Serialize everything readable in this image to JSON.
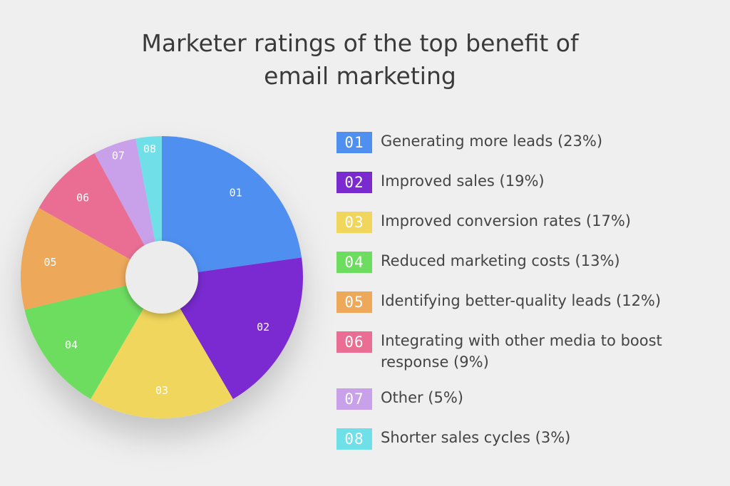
{
  "chart_data": {
    "type": "pie",
    "title_lines": [
      "Marketer ratings of the top benefit of",
      "email marketing"
    ],
    "slices": [
      {
        "num": "01",
        "label": "Generating more leads (23%)",
        "value": 23,
        "color": "#4f8ff0"
      },
      {
        "num": "02",
        "label": "Improved sales (19%)",
        "value": 19,
        "color": "#7a2bd0"
      },
      {
        "num": "03",
        "label": "Improved conversion rates (17%)",
        "value": 17,
        "color": "#f0d65c"
      },
      {
        "num": "04",
        "label": "Reduced marketing costs (13%)",
        "value": 13,
        "color": "#6ddd60"
      },
      {
        "num": "05",
        "label": "Identifying better-quality leads (12%)",
        "value": 12,
        "color": "#eda85a"
      },
      {
        "num": "06",
        "label": "Integrating with other media to boost response (9%)",
        "value": 9,
        "color": "#ea6e93"
      },
      {
        "num": "07",
        "label": "Other (5%)",
        "value": 5,
        "color": "#c9a0ea"
      },
      {
        "num": "08",
        "label": "Shorter sales cycles (3%)",
        "value": 3,
        "color": "#6fdfe8"
      }
    ]
  }
}
